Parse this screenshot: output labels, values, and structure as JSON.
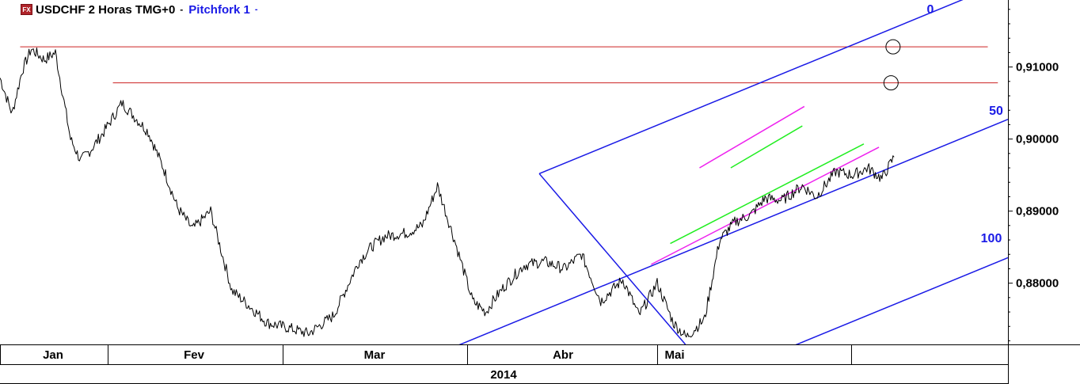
{
  "header": {
    "logo_text": "FX",
    "symbol": "USDCHF 2 Horas TMG+0",
    "separator": "-",
    "tool": "Pitchfork 1",
    "tool_caret": "-"
  },
  "colors": {
    "price": "#000000",
    "pitchfork": "#1a1ae6",
    "horizontal_lines": "#cc2222",
    "channel_green": "#22ee22",
    "channel_magenta": "#ee22ee",
    "grid": "#000000"
  },
  "chart_data": {
    "type": "line",
    "title": "USDCHF 2 Horas TMG+0",
    "year_label": "2014",
    "x_ticks": [
      "Jan",
      "Fev",
      "Mar",
      "Abr",
      "Mai"
    ],
    "y_ticks": [
      "0,91000",
      "0,90000",
      "0,89000",
      "0,88000"
    ],
    "y_tick_values": [
      0.91,
      0.9,
      0.89,
      0.88
    ],
    "ylim": [
      0.8715,
      0.9193
    ],
    "x_range": [
      0,
      100
    ],
    "grid": false,
    "price_series": {
      "name": "USDCHF",
      "x": [
        0,
        1.2,
        2.2,
        3.1,
        4.4,
        5.5,
        7.0,
        8.0,
        9.0,
        10.3,
        12.1,
        14.7,
        16.2,
        17.6,
        19.1,
        20.9,
        23.0,
        25.0,
        26.5,
        28.6,
        30.6,
        33.1,
        35.6,
        36.8,
        38.2,
        40.4,
        41.9,
        43.4,
        45.2,
        46.9,
        48.2,
        48.9,
        50.0,
        52.0,
        54.0,
        56.0,
        57.7,
        59.6,
        61.8,
        63.4,
        65.2,
        66.8,
        68.1,
        69.9,
        71.4,
        72.9,
        74.5,
        75.9,
        77.6,
        79.6,
        81.0,
        82.9,
        84.6,
        86.1,
        87.5,
        88.7
      ],
      "y": [
        0.9085,
        0.9035,
        0.9095,
        0.9125,
        0.911,
        0.912,
        0.9,
        0.897,
        0.8985,
        0.901,
        0.905,
        0.901,
        0.896,
        0.8905,
        0.8875,
        0.89,
        0.879,
        0.8765,
        0.8745,
        0.8738,
        0.873,
        0.8755,
        0.883,
        0.885,
        0.8865,
        0.887,
        0.888,
        0.8935,
        0.8855,
        0.8775,
        0.876,
        0.8775,
        0.8795,
        0.8825,
        0.883,
        0.882,
        0.884,
        0.8775,
        0.8805,
        0.8755,
        0.88,
        0.8745,
        0.8725,
        0.875,
        0.886,
        0.8885,
        0.8895,
        0.8918,
        0.8915,
        0.8935,
        0.892,
        0.8955,
        0.895,
        0.896,
        0.8945,
        0.8975
      ]
    },
    "pitchfork": {
      "name": "Pitchfork 1",
      "level_labels": [
        "0",
        "50",
        "100"
      ],
      "pivot": {
        "x": 53.5,
        "y": 0.8952
      },
      "upper_start": {
        "x": 53.5,
        "y": 0.8952
      },
      "slope_per_x": 0.000575,
      "lower_offset": -0.0384
    },
    "horizontal_lines": [
      {
        "y": 0.9128,
        "x_start": 2.0,
        "x_end": 98.0
      },
      {
        "y": 0.9078,
        "x_start": 11.2,
        "x_end": 99.0
      }
    ],
    "circle_markers": [
      {
        "x": 88.6,
        "y": 0.9128
      },
      {
        "x": 88.4,
        "y": 0.9078
      }
    ]
  }
}
